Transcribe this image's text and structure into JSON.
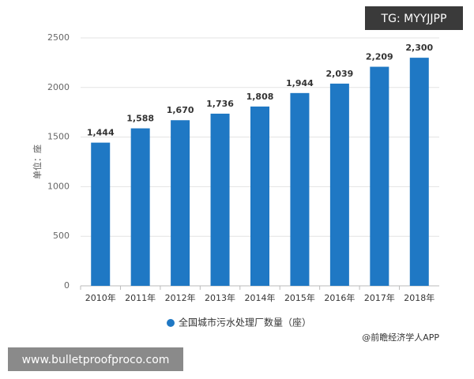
{
  "chart_data": {
    "type": "bar",
    "y_label": "单位：座",
    "categories": [
      "2010年",
      "2011年",
      "2012年",
      "2013年",
      "2014年",
      "2015年",
      "2016年",
      "2017年",
      "2018年"
    ],
    "series": [
      {
        "name": "全国城市污水处理厂数量（座）",
        "color": "#1f78c4",
        "values": [
          1444,
          1588,
          1670,
          1736,
          1808,
          1944,
          2039,
          2209,
          2300
        ],
        "value_labels": [
          "1,444",
          "1,588",
          "1,670",
          "1,736",
          "1,808",
          "1,944",
          "2,039",
          "2,209",
          "2,300"
        ]
      }
    ],
    "ylim": [
      0,
      2500
    ],
    "yticks": [
      0,
      500,
      1000,
      1500,
      2000,
      2500
    ],
    "grid": true,
    "source": "@前瞻经济学人APP"
  },
  "overlay": {
    "top_right": "TG: MYYJJPP",
    "bottom_left": "www.bulletproofproco.com"
  }
}
